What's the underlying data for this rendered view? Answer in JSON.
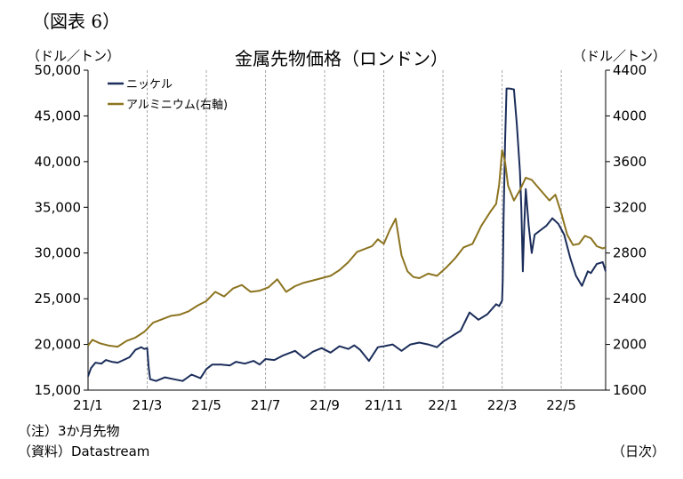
{
  "figure_label": "（図表 6）",
  "note": "（注）3か月先物",
  "source": "（資料）Datastream",
  "x_unit_label": "（日次）",
  "colors": {
    "nickel": "#1b2d5a",
    "aluminium": "#8c7420",
    "grid": "#a8a8a8",
    "axis": "#000000"
  },
  "chart_data": {
    "type": "line",
    "title": "金属先物価格（ロンドン）",
    "ylabel_left": "（ドル／トン）",
    "ylabel_right": "（ドル／トン）",
    "ylim_left": [
      15000,
      50000
    ],
    "ylim_right": [
      1600,
      4400
    ],
    "yticks_left": [
      "15,000",
      "20,000",
      "25,000",
      "30,000",
      "35,000",
      "40,000",
      "45,000",
      "50,000"
    ],
    "yticks_right": [
      "1600",
      "2000",
      "2400",
      "2800",
      "3200",
      "3600",
      "4000",
      "4400"
    ],
    "xticks": [
      "21/1",
      "21/3",
      "21/5",
      "21/7",
      "21/9",
      "21/11",
      "22/1",
      "22/3",
      "22/5"
    ],
    "x_range_months": [
      0,
      17.5
    ],
    "grid": {
      "vertical": true,
      "horizontal": false
    },
    "legend_position": "top-left",
    "series": [
      {
        "name": "ニッケル",
        "axis": "left",
        "x": [
          0,
          0.1,
          0.25,
          0.45,
          0.6,
          0.8,
          1.0,
          1.2,
          1.4,
          1.6,
          1.8,
          1.9,
          2.0,
          2.05,
          2.1,
          2.3,
          2.6,
          2.9,
          3.2,
          3.5,
          3.8,
          4.0,
          4.2,
          4.5,
          4.8,
          5.0,
          5.3,
          5.6,
          5.8,
          6.0,
          6.3,
          6.6,
          7.0,
          7.3,
          7.6,
          7.9,
          8.2,
          8.5,
          8.8,
          9.0,
          9.2,
          9.5,
          9.8,
          10.0,
          10.3,
          10.6,
          10.9,
          11.2,
          11.5,
          11.8,
          12.0,
          12.3,
          12.6,
          12.9,
          13.2,
          13.5,
          13.8,
          13.9,
          14.0,
          14.02,
          14.05,
          14.1,
          14.15,
          14.25,
          14.4,
          14.5,
          14.6,
          14.65,
          14.7,
          14.75,
          14.8,
          14.9,
          15.0,
          15.1,
          15.3,
          15.5,
          15.7,
          15.9,
          16.1,
          16.3,
          16.5,
          16.7,
          16.9,
          17.0,
          17.2,
          17.4,
          17.5
        ],
        "values": [
          16500,
          17400,
          18000,
          17900,
          18300,
          18100,
          18000,
          18300,
          18600,
          19400,
          19700,
          19500,
          19600,
          17500,
          16200,
          16000,
          16400,
          16200,
          16000,
          16700,
          16300,
          17300,
          17800,
          17800,
          17700,
          18100,
          17900,
          18200,
          17800,
          18400,
          18300,
          18800,
          19300,
          18500,
          19200,
          19600,
          19100,
          19800,
          19500,
          19900,
          19400,
          18200,
          19700,
          19800,
          20000,
          19300,
          20000,
          20200,
          20000,
          19700,
          20300,
          20900,
          21500,
          23500,
          22700,
          23300,
          24400,
          24200,
          24800,
          27000,
          34000,
          42000,
          48000,
          48000,
          47900,
          44000,
          39000,
          35000,
          28000,
          33000,
          37000,
          33000,
          30000,
          32000,
          32500,
          33000,
          33800,
          33200,
          32000,
          29500,
          27500,
          26400,
          28000,
          27800,
          28800,
          29000,
          28000
        ]
      },
      {
        "name": "アルミニウム(右軸)",
        "axis": "right",
        "x": [
          0,
          0.15,
          0.4,
          0.7,
          1.0,
          1.3,
          1.6,
          1.9,
          2.2,
          2.5,
          2.8,
          3.1,
          3.4,
          3.7,
          4.0,
          4.3,
          4.6,
          4.9,
          5.2,
          5.5,
          5.8,
          6.1,
          6.4,
          6.7,
          7.0,
          7.3,
          7.6,
          7.9,
          8.2,
          8.5,
          8.8,
          9.1,
          9.4,
          9.6,
          9.8,
          10.0,
          10.2,
          10.4,
          10.6,
          10.8,
          11.0,
          11.2,
          11.5,
          11.8,
          12.1,
          12.4,
          12.7,
          13.0,
          13.3,
          13.6,
          13.8,
          13.9,
          14.0,
          14.1,
          14.2,
          14.4,
          14.6,
          14.8,
          15.0,
          15.2,
          15.4,
          15.6,
          15.8,
          16.0,
          16.2,
          16.4,
          16.6,
          16.8,
          17.0,
          17.2,
          17.4,
          17.5
        ],
        "values": [
          1990,
          2040,
          2010,
          1990,
          1980,
          2030,
          2060,
          2110,
          2190,
          2220,
          2250,
          2260,
          2290,
          2340,
          2380,
          2460,
          2420,
          2490,
          2520,
          2460,
          2470,
          2500,
          2570,
          2460,
          2510,
          2540,
          2560,
          2580,
          2600,
          2650,
          2720,
          2810,
          2840,
          2860,
          2920,
          2880,
          3000,
          3100,
          2780,
          2640,
          2590,
          2580,
          2620,
          2600,
          2670,
          2750,
          2850,
          2880,
          3040,
          3160,
          3230,
          3400,
          3700,
          3600,
          3390,
          3260,
          3350,
          3460,
          3440,
          3380,
          3320,
          3260,
          3310,
          3150,
          2960,
          2870,
          2880,
          2950,
          2930,
          2860,
          2840,
          2850
        ]
      }
    ]
  }
}
